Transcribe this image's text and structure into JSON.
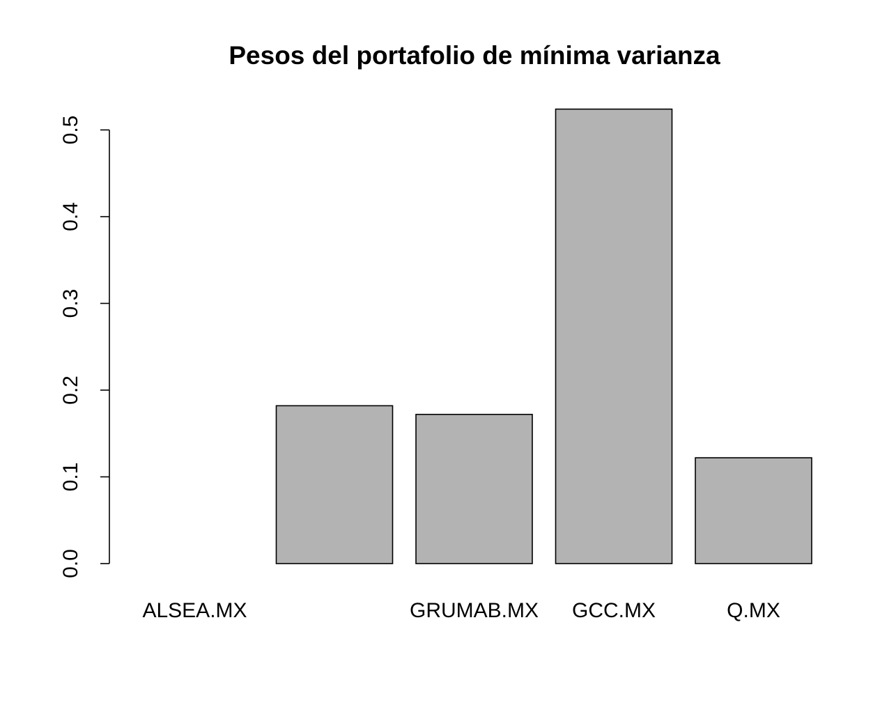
{
  "chart_data": {
    "type": "bar",
    "title": "Pesos del portafolio de mínima varianza",
    "xlabel": "",
    "ylabel": "",
    "categories": [
      "ALSEA.MX",
      "",
      "GRUMAB.MX",
      "GCC.MX",
      "Q.MX"
    ],
    "values": [
      0.0,
      0.182,
      0.172,
      0.524,
      0.122
    ],
    "ylim": [
      0,
      0.5
    ],
    "yticks": [
      0.0,
      0.1,
      0.2,
      0.3,
      0.4,
      0.5
    ],
    "ytick_labels": [
      "0.0",
      "0.1",
      "0.2",
      "0.3",
      "0.4",
      "0.5"
    ],
    "bar_color": "#b3b3b3",
    "grid": false,
    "legend": "none"
  }
}
